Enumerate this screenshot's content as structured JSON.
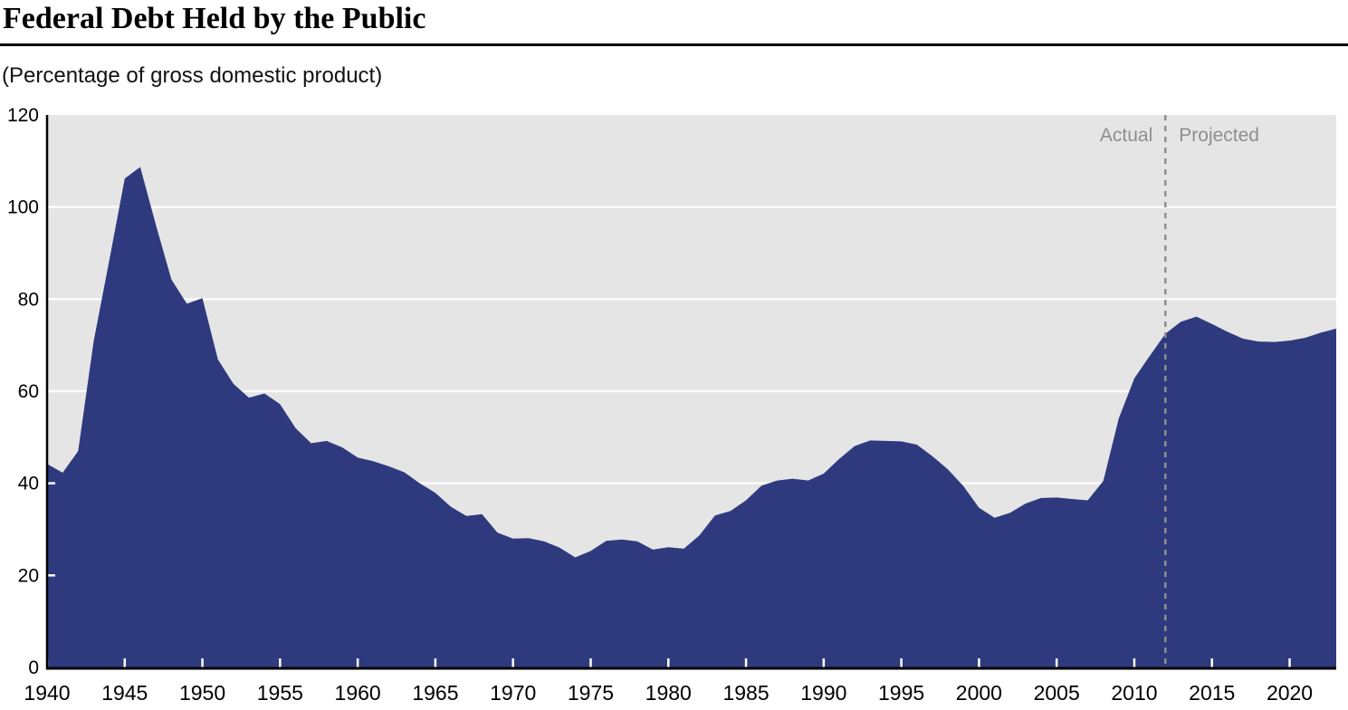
{
  "header": {
    "title": "Federal Debt Held by the Public",
    "subtitle": "(Percentage of gross domestic product)"
  },
  "chart_data": {
    "type": "area",
    "title": "Federal Debt Held by the Public",
    "subtitle": "(Percentage of gross domestic product)",
    "xlabel": "",
    "ylabel": "Percentage of gross domestic product",
    "xlim": [
      1940,
      2023
    ],
    "ylim": [
      0,
      120
    ],
    "x_ticks": [
      1940,
      1945,
      1950,
      1955,
      1960,
      1965,
      1970,
      1975,
      1980,
      1985,
      1990,
      1995,
      2000,
      2005,
      2010,
      2015,
      2020
    ],
    "y_ticks": [
      0,
      20,
      40,
      60,
      80,
      100,
      120
    ],
    "grid": "horizontal white gridlines on gray panel",
    "legend_position": "none",
    "divider_year": 2012,
    "annotations": {
      "actual": "Actual",
      "projected": "Projected"
    },
    "series": [
      {
        "name": "Federal debt held by the public (% of GDP)",
        "x": [
          1940,
          1941,
          1942,
          1943,
          1944,
          1945,
          1946,
          1947,
          1948,
          1949,
          1950,
          1951,
          1952,
          1953,
          1954,
          1955,
          1956,
          1957,
          1958,
          1959,
          1960,
          1961,
          1962,
          1963,
          1964,
          1965,
          1966,
          1967,
          1968,
          1969,
          1970,
          1971,
          1972,
          1973,
          1974,
          1975,
          1976,
          1977,
          1978,
          1979,
          1980,
          1981,
          1982,
          1983,
          1984,
          1985,
          1986,
          1987,
          1988,
          1989,
          1990,
          1991,
          1992,
          1993,
          1994,
          1995,
          1996,
          1997,
          1998,
          1999,
          2000,
          2001,
          2002,
          2003,
          2004,
          2005,
          2006,
          2007,
          2008,
          2009,
          2010,
          2011,
          2012,
          2013,
          2014,
          2015,
          2016,
          2017,
          2018,
          2019,
          2020,
          2021,
          2022,
          2023
        ],
        "values": [
          44.2,
          42.3,
          47.0,
          70.9,
          88.3,
          106.2,
          108.7,
          96.2,
          84.3,
          79.0,
          80.2,
          66.9,
          61.6,
          58.6,
          59.5,
          57.2,
          52.0,
          48.7,
          49.2,
          47.8,
          45.6,
          44.8,
          43.7,
          42.4,
          40.0,
          37.9,
          34.9,
          32.9,
          33.3,
          29.3,
          28.0,
          28.1,
          27.4,
          26.0,
          23.9,
          25.3,
          27.5,
          27.8,
          27.4,
          25.6,
          26.1,
          25.8,
          28.7,
          33.0,
          34.0,
          36.3,
          39.5,
          40.6,
          41.0,
          40.6,
          42.1,
          45.3,
          48.1,
          49.3,
          49.2,
          49.1,
          48.4,
          45.9,
          43.0,
          39.4,
          34.7,
          32.5,
          33.6,
          35.6,
          36.8,
          36.9,
          36.6,
          36.3,
          40.5,
          54.1,
          62.8,
          67.7,
          72.5,
          75.1,
          76.2,
          74.6,
          72.9,
          71.4,
          70.8,
          70.7,
          71.0,
          71.6,
          72.7,
          73.6
        ]
      }
    ],
    "colors": {
      "area": "#2f3a7e",
      "plot_background": "#e5e5e5",
      "gridline": "#fbfbfb",
      "tick": "#ffffff",
      "axis": "#000000",
      "divider": "#8f8f8f",
      "annotation_text": "#8e8e8e"
    }
  }
}
